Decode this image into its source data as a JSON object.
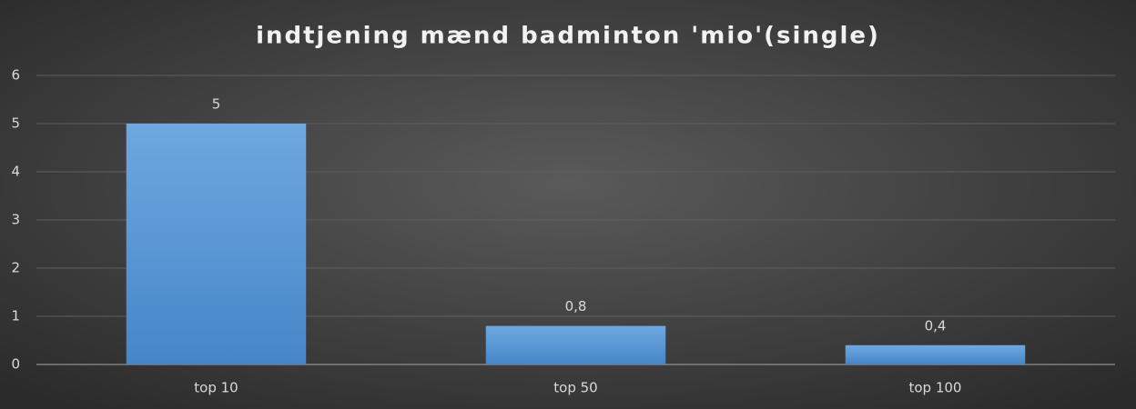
{
  "chart_data": {
    "type": "bar",
    "title": "indtjening mænd badminton 'mio'(single)",
    "categories": [
      "top 10",
      "top 50",
      "top 100"
    ],
    "values": [
      5,
      0.8,
      0.4
    ],
    "value_labels": [
      "5",
      "0,8",
      "0,4"
    ],
    "color": "#5b9bd5",
    "ylim": [
      0,
      6
    ],
    "yticks": [
      0,
      1,
      2,
      3,
      4,
      5,
      6
    ],
    "grid": true
  }
}
